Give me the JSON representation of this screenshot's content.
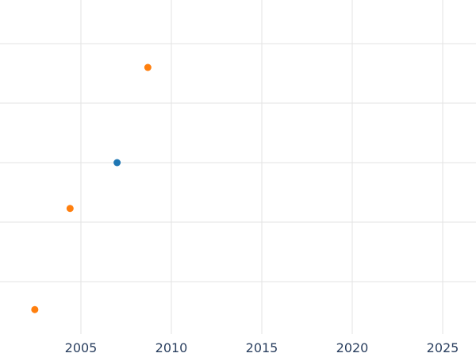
{
  "chart": {
    "title": "",
    "x_tick_labels": [
      "2005",
      "2010",
      "2015",
      "2020",
      "2025"
    ]
  },
  "chart_data": {
    "type": "scatter",
    "title": "",
    "xlabel": "",
    "ylabel": "",
    "x_ticks": [
      2005,
      2010,
      2015,
      2020,
      2025
    ],
    "x_range_visible": [
      2000.5,
      2026.8
    ],
    "y_tick_labels_visible": false,
    "y_unit": "gridline-units (y-axis labels cropped out of view)",
    "y_gridlines": [
      1,
      2,
      3,
      4,
      5
    ],
    "y_range_visible": [
      0,
      5.7
    ],
    "grid": true,
    "legend_position": "none",
    "series": [
      {
        "name": "blue",
        "color": "#1f77b4",
        "points": [
          {
            "x": 2007.0,
            "y": 3.0
          }
        ]
      },
      {
        "name": "orange",
        "color": "#ff7f0e",
        "points": [
          {
            "x": 2002.45,
            "y": 0.53
          },
          {
            "x": 2004.4,
            "y": 2.23
          },
          {
            "x": 2008.7,
            "y": 4.6
          }
        ]
      }
    ]
  },
  "style": {
    "background": "#ffffff",
    "grid_color": "#e3e3e3",
    "tick_label_color": "#2a3f5f",
    "tick_font_size": 16,
    "marker_radius": 4.5
  }
}
